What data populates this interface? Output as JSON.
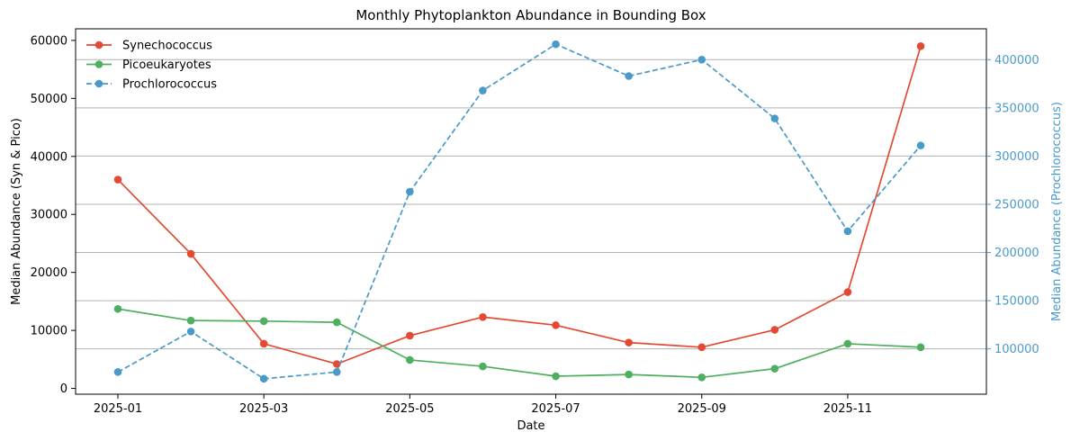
{
  "chart_data": {
    "type": "line",
    "title": "Monthly Phytoplankton Abundance in Bounding Box",
    "xlabel": "Date",
    "ylabel_left": "Median Abundance (Syn & Pico)",
    "ylabel_right": "Median Abundance (Prochlorococcus)",
    "x": [
      "2025-01",
      "2025-02",
      "2025-03",
      "2025-04",
      "2025-05",
      "2025-06",
      "2025-07",
      "2025-08",
      "2025-09",
      "2025-10",
      "2025-11",
      "2025-12"
    ],
    "x_tick_labels": [
      "2025-01",
      "2025-03",
      "2025-05",
      "2025-07",
      "2025-09",
      "2025-11"
    ],
    "ylim_left": [
      -1000,
      62000
    ],
    "yticks_left": [
      0,
      10000,
      20000,
      30000,
      40000,
      50000,
      60000
    ],
    "ylim_right": [
      53000,
      432000
    ],
    "yticks_right": [
      100000,
      150000,
      200000,
      250000,
      300000,
      350000,
      400000
    ],
    "grid": "horizontal lines at right-axis ticks",
    "legend_position": "top-left",
    "series": [
      {
        "name": "Synechococcus",
        "axis": "left",
        "style": "solid",
        "color": "#e34a33",
        "values": [
          36000,
          23200,
          7700,
          4200,
          9100,
          12300,
          10900,
          7900,
          7100,
          10100,
          16600,
          59000
        ]
      },
      {
        "name": "Picoeukaryotes",
        "axis": "left",
        "style": "solid",
        "color": "#4daf5f",
        "values": [
          13700,
          11700,
          11600,
          11400,
          4900,
          3800,
          2100,
          2400,
          1900,
          3400,
          7700,
          7100
        ]
      },
      {
        "name": "Prochlorococcus",
        "axis": "right",
        "style": "dashed",
        "color": "#4a9ac9",
        "values": [
          76000,
          118000,
          69000,
          76000,
          263000,
          368000,
          416000,
          383000,
          400000,
          339000,
          222000,
          311000
        ]
      }
    ]
  }
}
